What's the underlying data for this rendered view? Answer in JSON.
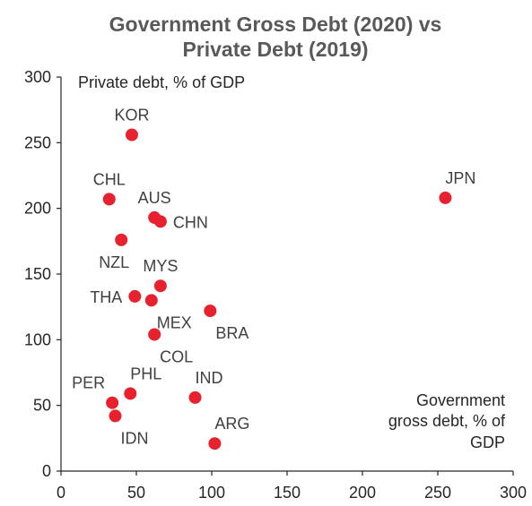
{
  "chart_data": {
    "type": "scatter",
    "title": [
      "Government Gross Debt (2020) vs",
      "Private Debt (2019)"
    ],
    "xlabel": [
      "Government",
      "gross debt, % of",
      "GDP"
    ],
    "ylabel": "Private debt, % of GDP",
    "xlim": [
      0,
      300
    ],
    "ylim": [
      0,
      300
    ],
    "xticks": [
      0,
      50,
      100,
      150,
      200,
      250,
      300
    ],
    "yticks": [
      0,
      50,
      100,
      150,
      200,
      250,
      300
    ],
    "grid": false,
    "marker_color": "#e8212f",
    "points": [
      {
        "label": "KOR",
        "x": 47,
        "y": 256,
        "label_pos": "above"
      },
      {
        "label": "CHL",
        "x": 32,
        "y": 207,
        "label_pos": "above"
      },
      {
        "label": "AUS",
        "x": 62,
        "y": 193,
        "label_pos": "above"
      },
      {
        "label": "CHN",
        "x": 66,
        "y": 190,
        "label_pos": "right"
      },
      {
        "label": "NZL",
        "x": 40,
        "y": 176,
        "label_pos": "below-left"
      },
      {
        "label": "MYS",
        "x": 66,
        "y": 141,
        "label_pos": "above"
      },
      {
        "label": "THA",
        "x": 49,
        "y": 133,
        "label_pos": "left"
      },
      {
        "label": "MEX",
        "x": 60,
        "y": 130,
        "label_pos": "below-right"
      },
      {
        "label": "BRA",
        "x": 99,
        "y": 122,
        "label_pos": "below-right"
      },
      {
        "label": "COL",
        "x": 62,
        "y": 104,
        "label_pos": "below-right"
      },
      {
        "label": "PER",
        "x": 34,
        "y": 52,
        "label_pos": "above-left"
      },
      {
        "label": "PHL",
        "x": 46,
        "y": 59,
        "label_pos": "above-right"
      },
      {
        "label": "IND",
        "x": 89,
        "y": 56,
        "label_pos": "above-right"
      },
      {
        "label": "IDN",
        "x": 36,
        "y": 42,
        "label_pos": "below-right"
      },
      {
        "label": "ARG",
        "x": 102,
        "y": 21,
        "label_pos": "above-right"
      },
      {
        "label": "JPN",
        "x": 255,
        "y": 208,
        "label_pos": "above-right"
      }
    ]
  }
}
